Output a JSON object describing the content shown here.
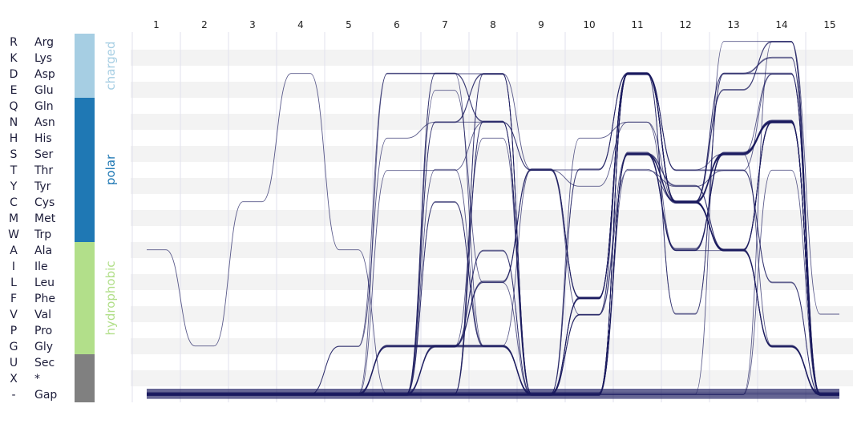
{
  "chart_data": {
    "type": "sequence-logo-flow",
    "positions": [
      "1",
      "2",
      "3",
      "4",
      "5",
      "6",
      "7",
      "8",
      "9",
      "10",
      "11",
      "12",
      "13",
      "14",
      "15"
    ],
    "residues": [
      {
        "code": "R",
        "name": "Arg"
      },
      {
        "code": "K",
        "name": "Lys"
      },
      {
        "code": "D",
        "name": "Asp"
      },
      {
        "code": "E",
        "name": "Glu"
      },
      {
        "code": "Q",
        "name": "Gln"
      },
      {
        "code": "N",
        "name": "Asn"
      },
      {
        "code": "H",
        "name": "His"
      },
      {
        "code": "S",
        "name": "Ser"
      },
      {
        "code": "T",
        "name": "Thr"
      },
      {
        "code": "Y",
        "name": "Tyr"
      },
      {
        "code": "C",
        "name": "Cys"
      },
      {
        "code": "M",
        "name": "Met"
      },
      {
        "code": "W",
        "name": "Trp"
      },
      {
        "code": "A",
        "name": "Ala"
      },
      {
        "code": "I",
        "name": "Ile"
      },
      {
        "code": "L",
        "name": "Leu"
      },
      {
        "code": "F",
        "name": "Phe"
      },
      {
        "code": "V",
        "name": "Val"
      },
      {
        "code": "P",
        "name": "Pro"
      },
      {
        "code": "G",
        "name": "Gly"
      },
      {
        "code": "U",
        "name": "Sec"
      },
      {
        "code": "X",
        "name": "*"
      },
      {
        "code": "-",
        "name": "Gap"
      }
    ],
    "categories": [
      {
        "name": "charged",
        "first": 0,
        "last": 3,
        "color": "#a6cee3",
        "show_label": true
      },
      {
        "name": "polar",
        "first": 4,
        "last": 12,
        "color": "#1f78b4",
        "show_label": true
      },
      {
        "name": "hydrophobic",
        "first": 13,
        "last": 19,
        "color": "#b2df8a",
        "show_label": true
      },
      {
        "name": "",
        "first": 20,
        "last": 22,
        "color": "#808080",
        "show_label": false
      }
    ],
    "bundles": [
      {
        "weight": 14,
        "path": [
          "-",
          "-",
          "-",
          "-",
          "-",
          "-",
          "-",
          "-",
          "-",
          "-",
          "-",
          "-",
          "-",
          "-",
          "-"
        ]
      },
      {
        "weight": 1,
        "path": [
          "A",
          "G",
          "C",
          "D",
          "A",
          "-",
          "-",
          "-",
          "-",
          "-",
          "-",
          "-",
          "-",
          "-",
          "-"
        ]
      },
      {
        "weight": 1,
        "path": [
          "-",
          "-",
          "-",
          "-",
          "G",
          "D",
          "D",
          "D",
          "T",
          "T",
          "D",
          "T",
          "S",
          "G",
          "-"
        ]
      },
      {
        "weight": 1,
        "path": [
          "-",
          "-",
          "-",
          "-",
          "G",
          "H",
          "N",
          "N",
          "T",
          "Y",
          "N",
          "C",
          "D",
          "K",
          "-"
        ]
      },
      {
        "weight": 1,
        "path": [
          "-",
          "-",
          "-",
          "-",
          "-",
          "T",
          "T",
          "N",
          "T",
          "V",
          "T",
          "Y",
          "T",
          "D",
          "-"
        ]
      },
      {
        "weight": 1,
        "path": [
          "-",
          "-",
          "-",
          "-",
          "-",
          "D",
          "D",
          "G",
          "T",
          "F",
          "D",
          "C",
          "S",
          "N",
          "-"
        ]
      },
      {
        "weight": 3,
        "path": [
          "-",
          "-",
          "-",
          "-",
          "-",
          "G",
          "G",
          "L",
          "T",
          "F",
          "D",
          "C",
          "S",
          "N",
          "-"
        ]
      },
      {
        "weight": 3,
        "path": [
          "-",
          "-",
          "-",
          "-",
          "-",
          "G",
          "G",
          "G",
          "-",
          "F",
          "D",
          "C",
          "A",
          "N",
          "-"
        ]
      },
      {
        "weight": 2,
        "path": [
          "-",
          "-",
          "-",
          "-",
          "-",
          "-",
          "N",
          "D",
          "-",
          "F",
          "D",
          "C",
          "A",
          "N",
          "-"
        ]
      },
      {
        "weight": 2,
        "path": [
          "-",
          "-",
          "-",
          "-",
          "-",
          "-",
          "G",
          "A",
          "-",
          "V",
          "D",
          "C",
          "A",
          "G",
          "-"
        ]
      },
      {
        "weight": 2,
        "path": [
          "-",
          "-",
          "-",
          "-",
          "-",
          "-",
          "G",
          "G",
          "-",
          "T",
          "D",
          "C",
          "A",
          "G",
          "-"
        ]
      },
      {
        "weight": 2,
        "path": [
          "-",
          "-",
          "-",
          "-",
          "-",
          "-",
          "D",
          "N",
          "-",
          "-",
          "S",
          "Y",
          "A",
          "N",
          "-"
        ]
      },
      {
        "weight": 2,
        "path": [
          "-",
          "-",
          "-",
          "-",
          "-",
          "-",
          "C",
          "G",
          "-",
          "-",
          "S",
          "C",
          "A",
          "G",
          "-"
        ]
      },
      {
        "weight": 1,
        "path": [
          "-",
          "-",
          "-",
          "-",
          "-",
          "-",
          "G",
          "H",
          "-",
          "H",
          "N",
          "A",
          "S",
          "D",
          "-"
        ]
      },
      {
        "weight": 1,
        "path": [
          "-",
          "-",
          "-",
          "-",
          "-",
          "-",
          "E",
          "L",
          "-",
          "V",
          "S",
          "A",
          "A",
          "G",
          "-"
        ]
      },
      {
        "weight": 1,
        "path": [
          "-",
          "-",
          "-",
          "-",
          "-",
          "-",
          "T",
          "G",
          "-",
          "-",
          "T",
          "C",
          "D",
          "K",
          "-"
        ]
      },
      {
        "weight": 2,
        "path": [
          "-",
          "-",
          "-",
          "-",
          "-",
          "-",
          "-",
          "N",
          "-",
          "-",
          "D",
          "V",
          "D",
          "D",
          "-"
        ]
      },
      {
        "weight": 2,
        "path": [
          "-",
          "-",
          "-",
          "-",
          "-",
          "-",
          "-",
          "D",
          "-",
          "-",
          "D",
          "C",
          "E",
          "R",
          "-"
        ]
      },
      {
        "weight": 2,
        "path": [
          "-",
          "-",
          "-",
          "-",
          "-",
          "-",
          "-",
          "-",
          "-",
          "-",
          "D",
          "T",
          "T",
          "L",
          "-"
        ]
      },
      {
        "weight": 3,
        "path": [
          "-",
          "-",
          "-",
          "-",
          "-",
          "-",
          "-",
          "-",
          "-",
          "-",
          "S",
          "C",
          "S",
          "N",
          "-"
        ]
      },
      {
        "weight": 4,
        "path": [
          "-",
          "-",
          "-",
          "-",
          "-",
          "-",
          "-",
          "-",
          "-",
          "-",
          "S",
          "A",
          "S",
          "N",
          "-"
        ]
      },
      {
        "weight": 1,
        "path": [
          "-",
          "-",
          "-",
          "-",
          "-",
          "-",
          "-",
          "-",
          "-",
          "-",
          "-",
          "-",
          "R",
          "R",
          "-"
        ]
      },
      {
        "weight": 1,
        "path": [
          "-",
          "-",
          "-",
          "-",
          "-",
          "-",
          "-",
          "-",
          "-",
          "-",
          "-",
          "-",
          "-",
          "R",
          "V"
        ]
      },
      {
        "weight": 1,
        "path": [
          "-",
          "-",
          "-",
          "-",
          "-",
          "-",
          "-",
          "-",
          "-",
          "-",
          "-",
          "-",
          "-",
          "T",
          "-"
        ]
      }
    ]
  }
}
